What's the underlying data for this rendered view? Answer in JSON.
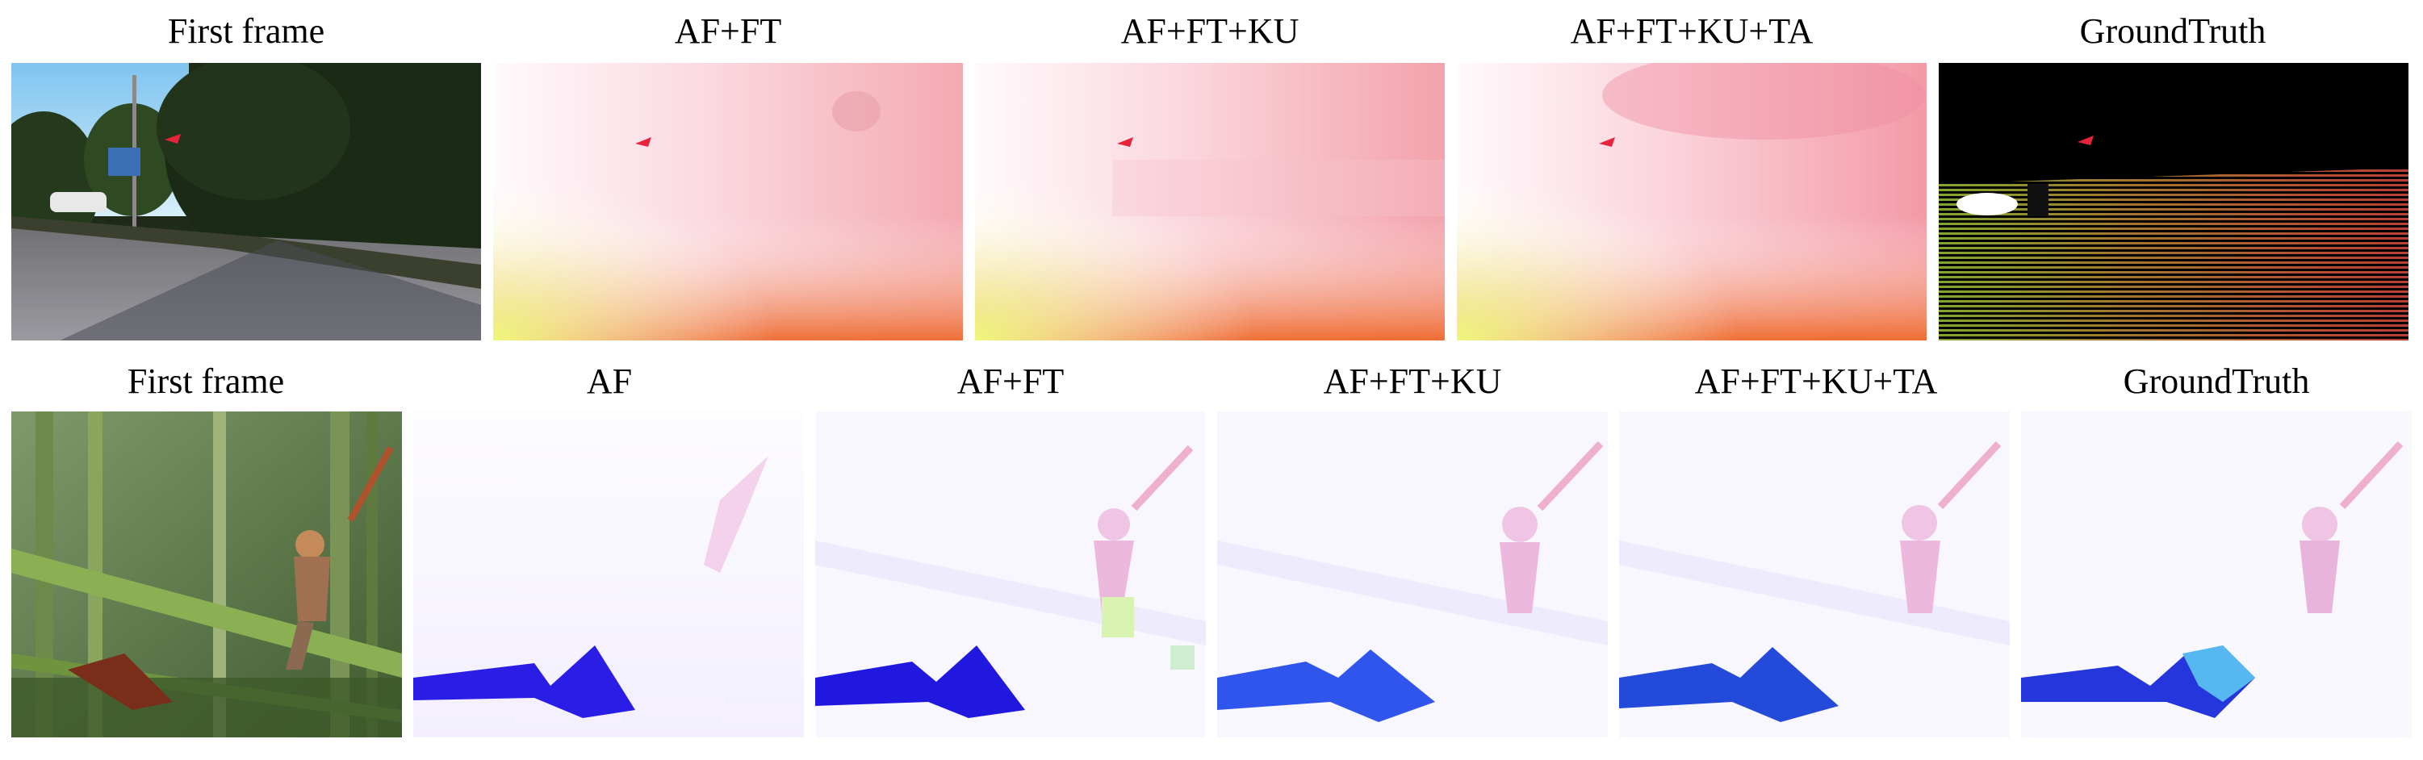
{
  "figure": {
    "row1": {
      "titles": [
        "First frame",
        "AF+FT",
        "AF+FT+KU",
        "AF+FT+KU+TA",
        "GroundTruth"
      ]
    },
    "row2": {
      "titles": [
        "First frame",
        "AF",
        "AF+FT",
        "AF+FT+KU",
        "AF+FT+KU+TA",
        "GroundTruth"
      ]
    },
    "colors": {
      "arrow": "#e8243c",
      "flow_red": "#ee5a2a",
      "flow_yellow": "#f6f68a",
      "flow_blue": "#1d1de0",
      "flow_pink": "#f0b0c8",
      "sky": "#a9d8f5"
    }
  }
}
